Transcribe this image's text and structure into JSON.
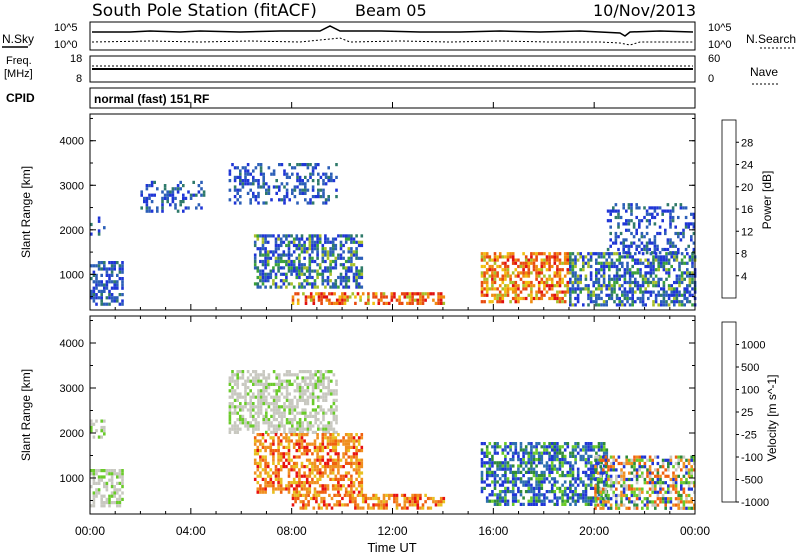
{
  "header": {
    "station": "South Pole Station (fitACF)",
    "beam": "Beam 05",
    "date": "10/Nov/2013"
  },
  "top_panels": {
    "nsky_label": "N.Sky",
    "nsky_ticks": [
      "10^5",
      "10^0"
    ],
    "nsearch_label": "N.Search",
    "nsearch_ticks": [
      "10^5",
      "10^0"
    ],
    "freq_label_line1": "Freq.",
    "freq_label_line2": "[MHz]",
    "freq_ticks": [
      "18",
      "8"
    ],
    "nave_label": "Nave",
    "nave_ticks": [
      "60",
      "0"
    ],
    "cpid_label": "CPID",
    "cpid_text": "normal (fast) 151 RF"
  },
  "colors": {
    "power_scale": [
      "#1f35d6",
      "#2c5fb8",
      "#2f7a6a",
      "#3aa13a",
      "#a8c02a",
      "#f0c010",
      "#f08a10",
      "#e84a10",
      "#e01010"
    ],
    "velocity_scale": [
      "#1f35d6",
      "#2d6fb0",
      "#2e8a3a",
      "#6acb2a",
      "#c8c8c0",
      "#e8c020",
      "#f09020",
      "#f06010",
      "#e81010"
    ]
  },
  "chart_data": [
    {
      "type": "heatmap",
      "panel": "power",
      "ylabel": "Slant Range [km]",
      "yticks": [
        "1000",
        "2000",
        "3000",
        "4000"
      ],
      "ylim": [
        200,
        4600
      ],
      "xlim": [
        0,
        24
      ],
      "colorbar_label": "Power [dB]",
      "colorbar_ticks": [
        "28",
        "24",
        "20",
        "16",
        "12",
        "8",
        "4"
      ],
      "colorbar_range": [
        0,
        32
      ],
      "echo_regions": [
        {
          "t0": 0.0,
          "t1": 1.3,
          "r0": 350,
          "r1": 1300,
          "level": "weak-moderate"
        },
        {
          "t0": 0.0,
          "t1": 0.6,
          "r0": 1900,
          "r1": 2300,
          "level": "weak"
        },
        {
          "t0": 2.0,
          "t1": 4.5,
          "r0": 2400,
          "r1": 3100,
          "level": "weak"
        },
        {
          "t0": 5.5,
          "t1": 9.8,
          "r0": 2600,
          "r1": 3500,
          "level": "weak"
        },
        {
          "t0": 6.5,
          "t1": 10.8,
          "r0": 700,
          "r1": 1900,
          "level": "moderate"
        },
        {
          "t0": 8.0,
          "t1": 14.0,
          "r0": 350,
          "r1": 600,
          "level": "strong"
        },
        {
          "t0": 15.5,
          "t1": 19.0,
          "r0": 400,
          "r1": 1500,
          "level": "strong"
        },
        {
          "t0": 19.0,
          "t1": 24.0,
          "r0": 300,
          "r1": 1500,
          "level": "moderate"
        },
        {
          "t0": 20.5,
          "t1": 24.0,
          "r0": 1500,
          "r1": 2600,
          "level": "weak"
        }
      ]
    },
    {
      "type": "heatmap",
      "panel": "velocity",
      "ylabel": "Slant Range [km]",
      "yticks": [
        "1000",
        "2000",
        "3000",
        "4000"
      ],
      "ylim": [
        200,
        4600
      ],
      "xlim": [
        0,
        24
      ],
      "colorbar_label": "Velocity [m s^-1]",
      "colorbar_ticks": [
        "1000",
        "500",
        "100",
        "25",
        "-25",
        "-100",
        "-500",
        "-1000"
      ],
      "colorbar_range": [
        -1200,
        1200
      ],
      "echo_regions": [
        {
          "t0": 0.0,
          "t1": 1.3,
          "r0": 400,
          "r1": 1200,
          "level": "ground-scatter"
        },
        {
          "t0": 0.0,
          "t1": 0.6,
          "r0": 1900,
          "r1": 2300,
          "level": "ground-scatter"
        },
        {
          "t0": 5.5,
          "t1": 9.8,
          "r0": 2000,
          "r1": 3400,
          "level": "ground-scatter"
        },
        {
          "t0": 6.5,
          "t1": 10.8,
          "r0": 700,
          "r1": 2000,
          "level": "negative"
        },
        {
          "t0": 8.0,
          "t1": 14.0,
          "r0": 350,
          "r1": 650,
          "level": "negative"
        },
        {
          "t0": 15.5,
          "t1": 20.5,
          "r0": 400,
          "r1": 1800,
          "level": "positive"
        },
        {
          "t0": 20.0,
          "t1": 24.0,
          "r0": 300,
          "r1": 1500,
          "level": "mixed"
        }
      ]
    }
  ],
  "x_axis": {
    "ticks": [
      "00:00",
      "04:00",
      "08:00",
      "12:00",
      "16:00",
      "20:00",
      "00:00"
    ],
    "label": "Time UT"
  }
}
